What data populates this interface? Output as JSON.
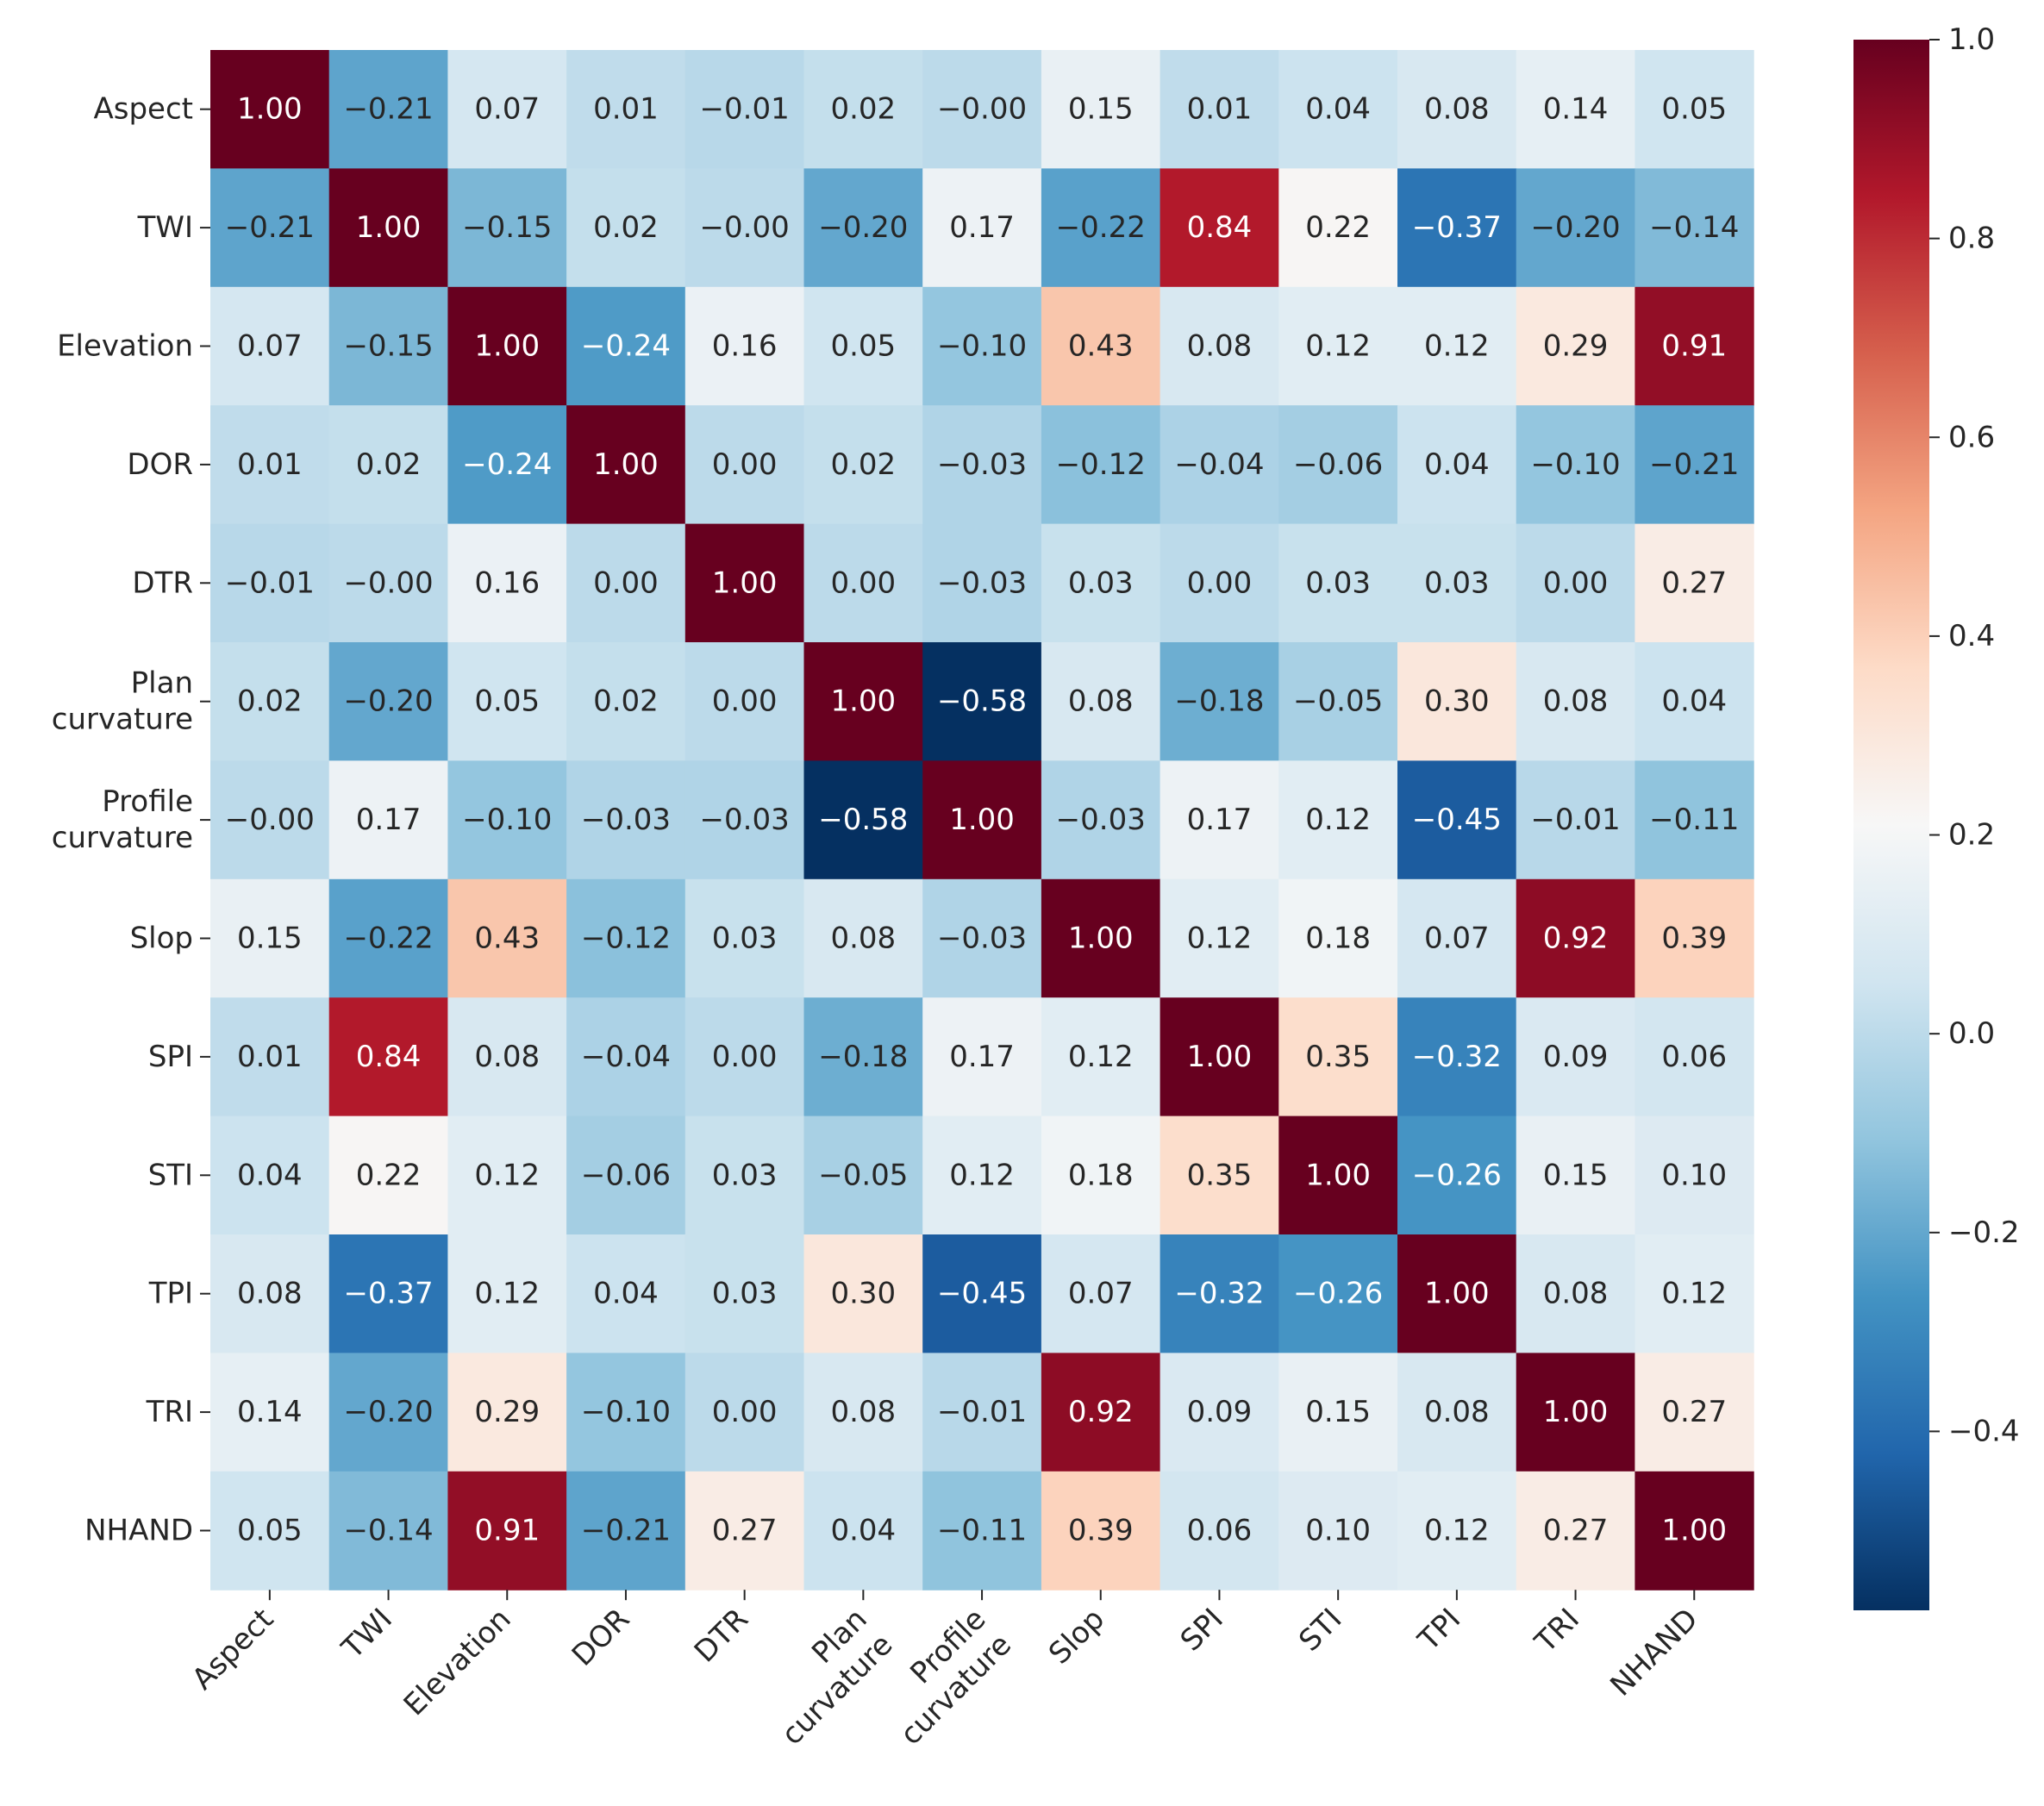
{
  "chart_data": {
    "type": "heatmap",
    "title": "",
    "xlabel": "",
    "ylabel": "",
    "row_labels": [
      [
        "Aspect"
      ],
      [
        "TWI"
      ],
      [
        "Elevation"
      ],
      [
        "DOR"
      ],
      [
        "DTR"
      ],
      [
        "Plan",
        "curvature"
      ],
      [
        "Profile",
        "curvature"
      ],
      [
        "Slop"
      ],
      [
        "SPI"
      ],
      [
        "STI"
      ],
      [
        "TPI"
      ],
      [
        "TRI"
      ],
      [
        "NHAND"
      ]
    ],
    "col_labels": [
      [
        "Aspect"
      ],
      [
        "TWI"
      ],
      [
        "Elevation"
      ],
      [
        "DOR"
      ],
      [
        "DTR"
      ],
      [
        "Plan",
        "curvature"
      ],
      [
        "Profile",
        "curvature"
      ],
      [
        "Slop"
      ],
      [
        "SPI"
      ],
      [
        "STI"
      ],
      [
        "TPI"
      ],
      [
        "TRI"
      ],
      [
        "NHAND"
      ]
    ],
    "values": [
      [
        1.0,
        -0.21,
        0.07,
        0.01,
        -0.01,
        0.02,
        -0.0,
        0.15,
        0.01,
        0.04,
        0.08,
        0.14,
        0.05
      ],
      [
        -0.21,
        1.0,
        -0.15,
        0.02,
        -0.0,
        -0.2,
        0.17,
        -0.22,
        0.84,
        0.22,
        -0.37,
        -0.2,
        -0.14
      ],
      [
        0.07,
        -0.15,
        1.0,
        -0.24,
        0.16,
        0.05,
        -0.1,
        0.43,
        0.08,
        0.12,
        0.12,
        0.29,
        0.91
      ],
      [
        0.01,
        0.02,
        -0.24,
        1.0,
        0.0,
        0.02,
        -0.03,
        -0.12,
        -0.04,
        -0.06,
        0.04,
        -0.1,
        -0.21
      ],
      [
        -0.01,
        -0.0,
        0.16,
        0.0,
        1.0,
        0.0,
        -0.03,
        0.03,
        0.0,
        0.03,
        0.03,
        0.0,
        0.27
      ],
      [
        0.02,
        -0.2,
        0.05,
        0.02,
        0.0,
        1.0,
        -0.58,
        0.08,
        -0.18,
        -0.05,
        0.3,
        0.08,
        0.04
      ],
      [
        -0.0,
        0.17,
        -0.1,
        -0.03,
        -0.03,
        -0.58,
        1.0,
        -0.03,
        0.17,
        0.12,
        -0.45,
        -0.01,
        -0.11
      ],
      [
        0.15,
        -0.22,
        0.43,
        -0.12,
        0.03,
        0.08,
        -0.03,
        1.0,
        0.12,
        0.18,
        0.07,
        0.92,
        0.39
      ],
      [
        0.01,
        0.84,
        0.08,
        -0.04,
        0.0,
        -0.18,
        0.17,
        0.12,
        1.0,
        0.35,
        -0.32,
        0.09,
        0.06
      ],
      [
        0.04,
        0.22,
        0.12,
        -0.06,
        0.03,
        -0.05,
        0.12,
        0.18,
        0.35,
        1.0,
        -0.26,
        0.15,
        0.1
      ],
      [
        0.08,
        -0.37,
        0.12,
        0.04,
        0.03,
        0.3,
        -0.45,
        0.07,
        -0.32,
        -0.26,
        1.0,
        0.08,
        0.12
      ],
      [
        0.14,
        -0.2,
        0.29,
        -0.1,
        0.0,
        0.08,
        -0.01,
        0.92,
        0.09,
        0.15,
        0.08,
        1.0,
        0.27
      ],
      [
        0.05,
        -0.14,
        0.91,
        -0.21,
        0.27,
        0.04,
        -0.11,
        0.39,
        0.06,
        0.1,
        0.12,
        0.27,
        1.0
      ]
    ],
    "value_format": "2 decimals, unicode minus",
    "colorbar": {
      "colormap": "RdBu_r",
      "range": [
        -0.58,
        1.0
      ],
      "ticks": [
        -0.4,
        -0.2,
        0.0,
        0.2,
        0.4,
        0.6,
        0.8,
        1.0
      ],
      "tick_labels": [
        "−0.4",
        "−0.2",
        "0.0",
        "0.2",
        "0.4",
        "0.6",
        "0.8",
        "1.0"
      ],
      "position": "right"
    },
    "colormap_stops": [
      "#053061",
      "#2166ac",
      "#4393c3",
      "#92c5de",
      "#d1e5f0",
      "#f7f7f7",
      "#fddbc7",
      "#f4a582",
      "#d6604d",
      "#b2182b",
      "#67001f"
    ]
  }
}
